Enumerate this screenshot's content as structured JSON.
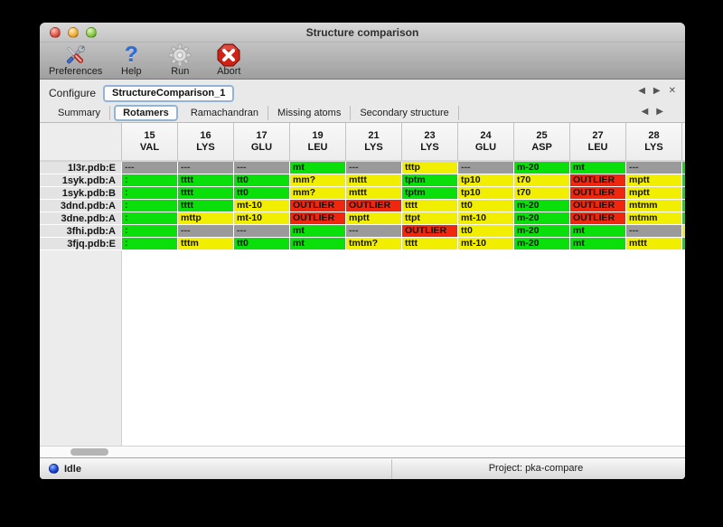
{
  "window": {
    "title": "Structure comparison"
  },
  "traffic_lights": [
    {
      "name": "close",
      "color": "red"
    },
    {
      "name": "minimize",
      "color": "yellow"
    },
    {
      "name": "zoom",
      "color": "green"
    }
  ],
  "toolbar": {
    "buttons": [
      {
        "name": "preferences",
        "label": "Preferences",
        "icon": "tools-icon"
      },
      {
        "name": "help",
        "label": "Help",
        "icon": "help-icon",
        "glyph": "?"
      },
      {
        "name": "run",
        "label": "Run",
        "icon": "gear-icon"
      },
      {
        "name": "abort",
        "label": "Abort",
        "icon": "abort-icon"
      }
    ]
  },
  "configure": {
    "label": "Configure",
    "value": "StructureComparison_1",
    "nav": [
      {
        "name": "prev-config",
        "glyph": "◀"
      },
      {
        "name": "next-config",
        "glyph": "▶"
      },
      {
        "name": "close-config",
        "glyph": "✕"
      }
    ]
  },
  "tabs": {
    "items": [
      "Summary",
      "Rotamers",
      "Ramachandran",
      "Missing atoms",
      "Secondary structure"
    ],
    "active": "Rotamers",
    "nav": [
      {
        "name": "prev-tab",
        "glyph": "◀"
      },
      {
        "name": "next-tab",
        "glyph": "▶"
      }
    ]
  },
  "colors": {
    "g": "#0bdf0b",
    "y": "#f2ee00",
    "r": "#f0270f",
    "x": "#9a9a9a"
  },
  "table": {
    "columns": [
      {
        "num": "15",
        "res": "VAL"
      },
      {
        "num": "16",
        "res": "LYS"
      },
      {
        "num": "17",
        "res": "GLU"
      },
      {
        "num": "19",
        "res": "LEU"
      },
      {
        "num": "21",
        "res": "LYS"
      },
      {
        "num": "23",
        "res": "LYS"
      },
      {
        "num": "24",
        "res": "GLU"
      },
      {
        "num": "25",
        "res": "ASP"
      },
      {
        "num": "27",
        "res": "LEU"
      },
      {
        "num": "28",
        "res": "LYS"
      }
    ],
    "rows": [
      {
        "label": "1l3r.pdb:E",
        "cells": [
          {
            "c": "x",
            "t": "---"
          },
          {
            "c": "x",
            "t": "---"
          },
          {
            "c": "x",
            "t": "---"
          },
          {
            "c": "g",
            "t": "mt"
          },
          {
            "c": "x",
            "t": "---"
          },
          {
            "c": "y",
            "t": "tttp"
          },
          {
            "c": "x",
            "t": "---"
          },
          {
            "c": "g",
            "t": "m-20"
          },
          {
            "c": "g",
            "t": "mt"
          },
          {
            "c": "x",
            "t": "---"
          }
        ],
        "partial": {
          "c": "g",
          "t": "m"
        }
      },
      {
        "label": "1syk.pdb:A",
        "cells": [
          {
            "c": "g",
            "t": ":"
          },
          {
            "c": "g",
            "t": "tttt"
          },
          {
            "c": "g",
            "t": "tt0"
          },
          {
            "c": "y",
            "t": "mm?"
          },
          {
            "c": "y",
            "t": "mttt"
          },
          {
            "c": "g",
            "t": "tptm"
          },
          {
            "c": "y",
            "t": "tp10"
          },
          {
            "c": "y",
            "t": "t70"
          },
          {
            "c": "r",
            "t": "OUTLIER"
          },
          {
            "c": "y",
            "t": "mptt"
          }
        ],
        "partial": {
          "c": "g",
          "t": "m"
        }
      },
      {
        "label": "1syk.pdb:B",
        "cells": [
          {
            "c": "g",
            "t": ":"
          },
          {
            "c": "g",
            "t": "tttt"
          },
          {
            "c": "g",
            "t": "tt0"
          },
          {
            "c": "y",
            "t": "mm?"
          },
          {
            "c": "y",
            "t": "mttt"
          },
          {
            "c": "g",
            "t": "tptm"
          },
          {
            "c": "y",
            "t": "tp10"
          },
          {
            "c": "y",
            "t": "t70"
          },
          {
            "c": "r",
            "t": "OUTLIER"
          },
          {
            "c": "y",
            "t": "mptt"
          }
        ],
        "partial": {
          "c": "g",
          "t": "m"
        }
      },
      {
        "label": "3dnd.pdb:A",
        "cells": [
          {
            "c": "g",
            "t": ":"
          },
          {
            "c": "g",
            "t": "tttt"
          },
          {
            "c": "y",
            "t": "mt-10"
          },
          {
            "c": "r",
            "t": "OUTLIER"
          },
          {
            "c": "r",
            "t": "OUTLIER"
          },
          {
            "c": "y",
            "t": "tttt"
          },
          {
            "c": "y",
            "t": "tt0"
          },
          {
            "c": "g",
            "t": "m-20"
          },
          {
            "c": "r",
            "t": "OUTLIER"
          },
          {
            "c": "y",
            "t": "mtmm"
          }
        ],
        "partial": {
          "c": "g",
          "t": "m"
        }
      },
      {
        "label": "3dne.pdb:A",
        "cells": [
          {
            "c": "g",
            "t": ":"
          },
          {
            "c": "y",
            "t": "mttp"
          },
          {
            "c": "y",
            "t": "mt-10"
          },
          {
            "c": "r",
            "t": "OUTLIER"
          },
          {
            "c": "y",
            "t": "mptt"
          },
          {
            "c": "y",
            "t": "ttpt"
          },
          {
            "c": "y",
            "t": "mt-10"
          },
          {
            "c": "g",
            "t": "m-20"
          },
          {
            "c": "r",
            "t": "OUTLIER"
          },
          {
            "c": "y",
            "t": "mtmm"
          }
        ],
        "partial": {
          "c": "g",
          "t": "m"
        }
      },
      {
        "label": "3fhi.pdb:A",
        "cells": [
          {
            "c": "g",
            "t": ":"
          },
          {
            "c": "x",
            "t": "---"
          },
          {
            "c": "x",
            "t": "---"
          },
          {
            "c": "g",
            "t": "mt"
          },
          {
            "c": "x",
            "t": "---"
          },
          {
            "c": "r",
            "t": "OUTLIER"
          },
          {
            "c": "y",
            "t": "tt0"
          },
          {
            "c": "g",
            "t": "m-20"
          },
          {
            "c": "g",
            "t": "mt"
          },
          {
            "c": "x",
            "t": "---"
          }
        ],
        "partial": {
          "c": "y",
          "t": "m"
        }
      },
      {
        "label": "3fjq.pdb:E",
        "cells": [
          {
            "c": "g",
            "t": ":"
          },
          {
            "c": "y",
            "t": "tttm"
          },
          {
            "c": "g",
            "t": "tt0"
          },
          {
            "c": "g",
            "t": "mt"
          },
          {
            "c": "y",
            "t": "tmtm?"
          },
          {
            "c": "y",
            "t": "tttt"
          },
          {
            "c": "y",
            "t": "mt-10"
          },
          {
            "c": "g",
            "t": "m-20"
          },
          {
            "c": "g",
            "t": "mt"
          },
          {
            "c": "y",
            "t": "mttt"
          }
        ],
        "partial": {
          "c": "g",
          "t": "m"
        }
      }
    ]
  },
  "statusbar": {
    "status": "Idle",
    "project": "Project: pka-compare"
  }
}
